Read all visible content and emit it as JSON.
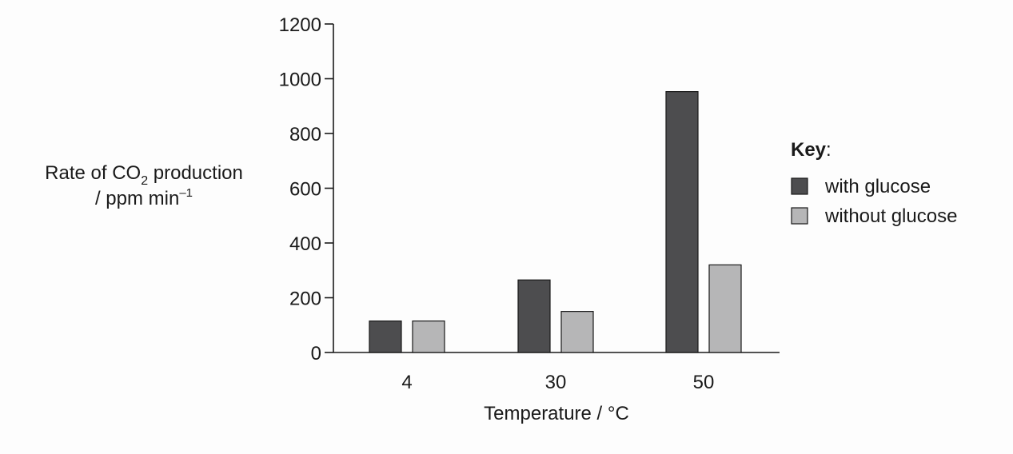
{
  "chart_data": {
    "type": "bar",
    "categories": [
      "4",
      "30",
      "50"
    ],
    "series": [
      {
        "name": "with glucose",
        "values": [
          115,
          265,
          953
        ],
        "color": "#4d4d4f"
      },
      {
        "name": "without glucose",
        "values": [
          115,
          150,
          320
        ],
        "color": "#b6b6b7"
      }
    ],
    "xlabel": "Temperature / °C",
    "ylabel": {
      "line1_prefix": "Rate of CO",
      "line1_subscript": "2",
      "line1_suffix": " production",
      "line2_prefix": "/ ppm min",
      "line2_superscript": "–1"
    },
    "ylim": [
      0,
      1200
    ],
    "yticks": [
      0,
      200,
      400,
      600,
      800,
      1000,
      1200
    ],
    "legend": {
      "title": "Key",
      "title_suffix": ":",
      "placement": "right"
    },
    "grid": false
  }
}
